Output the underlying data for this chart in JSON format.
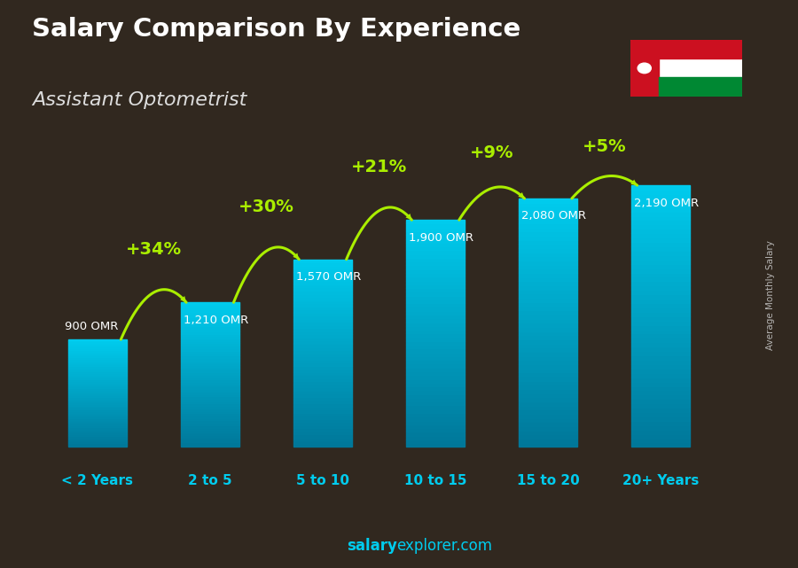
{
  "title_line1": "Salary Comparison By Experience",
  "title_line2": "Assistant Optometrist",
  "categories": [
    "< 2 Years",
    "2 to 5",
    "5 to 10",
    "10 to 15",
    "15 to 20",
    "20+ Years"
  ],
  "values": [
    900,
    1210,
    1570,
    1900,
    2080,
    2190
  ],
  "bar_color_top": "#00ccee",
  "bar_color_bottom": "#007799",
  "pct_labels": [
    "+34%",
    "+30%",
    "+21%",
    "+9%",
    "+5%"
  ],
  "salary_labels": [
    "900 OMR",
    "1,210 OMR",
    "1,570 OMR",
    "1,900 OMR",
    "2,080 OMR",
    "2,190 OMR"
  ],
  "pct_color": "#aaee00",
  "salary_label_color": "#ffffff",
  "xlabel_color": "#00ccee",
  "title_color": "#ffffff",
  "subtitle_color": "#dddddd",
  "bg_color": "#3a3028",
  "watermark_salary": "salary",
  "watermark_explorer": "explorer.com",
  "watermark_color": "#00ccee",
  "ylabel_text": "Average Monthly Salary",
  "ylabel_color": "#cccccc",
  "ylim_max": 2600,
  "bar_width": 0.52,
  "flag_colors": {
    "red": "#cc1020",
    "white": "#ffffff",
    "green": "#008833"
  }
}
